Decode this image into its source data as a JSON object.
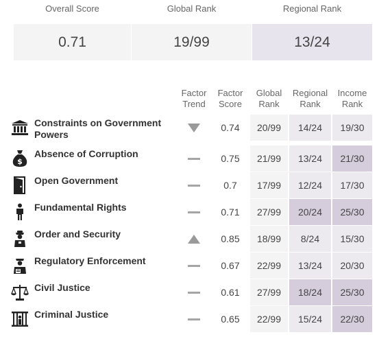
{
  "summary": {
    "overall": {
      "label": "Overall Score",
      "value": "0.71"
    },
    "global": {
      "label": "Global Rank",
      "value": "19/99"
    },
    "regional": {
      "label": "Regional Rank",
      "value": "13/24"
    }
  },
  "table": {
    "headers": {
      "trend": [
        "Factor",
        "Trend"
      ],
      "score": [
        "Factor",
        "Score"
      ],
      "global": [
        "Global",
        "Rank"
      ],
      "regional": [
        "Regional",
        "Rank"
      ],
      "income": [
        "Income",
        "Rank"
      ]
    },
    "rows": [
      {
        "factor": "Constraints on Government Powers",
        "icon": "pillars-icon",
        "trend": "down",
        "score": "0.74",
        "global": "20/99",
        "regional": "14/24",
        "income": "19/30"
      },
      {
        "factor": "Absence of Corruption",
        "icon": "money-bag-icon",
        "trend": "flat",
        "score": "0.75",
        "global": "21/99",
        "regional": "13/24",
        "income": "21/30"
      },
      {
        "factor": "Open Government",
        "icon": "open-door-icon",
        "trend": "flat",
        "score": "0.7",
        "global": "17/99",
        "regional": "12/24",
        "income": "17/30"
      },
      {
        "factor": "Fundamental Rights",
        "icon": "person-icon",
        "trend": "flat",
        "score": "0.71",
        "global": "27/99",
        "regional": "20/24",
        "income": "25/30"
      },
      {
        "factor": "Order and Security",
        "icon": "police-officer-icon",
        "trend": "up",
        "score": "0.85",
        "global": "18/99",
        "regional": "8/24",
        "income": "15/30"
      },
      {
        "factor": "Regulatory Enforcement",
        "icon": "inspector-icon",
        "trend": "flat",
        "score": "0.67",
        "global": "22/99",
        "regional": "13/24",
        "income": "20/30"
      },
      {
        "factor": "Civil Justice",
        "icon": "scales-icon",
        "trend": "flat",
        "score": "0.61",
        "global": "27/99",
        "regional": "18/24",
        "income": "25/30"
      },
      {
        "factor": "Criminal Justice",
        "icon": "prison-bars-icon",
        "trend": "flat",
        "score": "0.65",
        "global": "22/99",
        "regional": "15/24",
        "income": "22/30"
      }
    ],
    "highlighted": {
      "regional": [
        3,
        6
      ],
      "income": [
        1,
        3,
        6,
        7
      ]
    }
  },
  "colors": {
    "highlight": "#d6cddc",
    "rank_cell": "#ece9ef",
    "summary_bg": "#f5f4f4",
    "summary_highlight": "#e8e4ed"
  }
}
